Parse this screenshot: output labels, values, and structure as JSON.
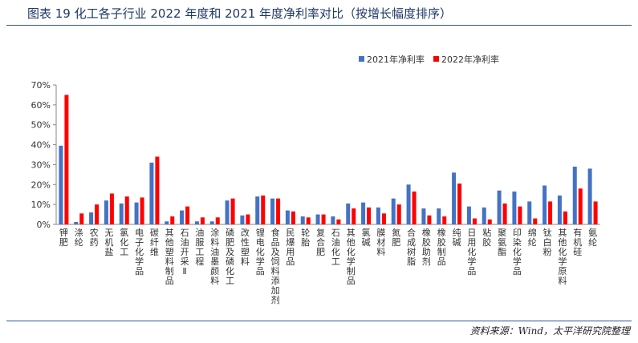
{
  "header": {
    "title": "图表 19 化工各子行业 2022 年度和 2021 年度净利率对比（按增长幅度排序）"
  },
  "footer": {
    "source": "资料来源：Wind，太平洋研究院整理"
  },
  "chart_data": {
    "type": "bar",
    "title": "",
    "xlabel": "",
    "ylabel": "",
    "ylim": [
      0,
      70
    ],
    "y_ticks": [
      "0%",
      "10%",
      "20%",
      "30%",
      "40%",
      "50%",
      "60%",
      "70%"
    ],
    "y_format": "percent",
    "grid": false,
    "legend_position": "top-right",
    "categories": [
      "钾肥",
      "涤纶",
      "农药",
      "无机盐",
      "氯化工",
      "电子化学品",
      "碳纤维",
      "其他塑料制品",
      "石油开采Ⅱ",
      "油服工程",
      "涂料油墨颜料",
      "磷肥及磷化工",
      "改性塑料",
      "锂电化学品",
      "食品及饲料添加剂",
      "民爆用品",
      "轮胎",
      "复合肥",
      "石油化工",
      "其他化学制品",
      "氯碱",
      "膜材料",
      "氮肥",
      "合成树脂",
      "橡胶助剂",
      "橡胶制品",
      "纯碱",
      "日用化学品",
      "粘胶",
      "聚氨酯",
      "印染化学品",
      "绵纶",
      "钛白粉",
      "其他化学原料",
      "有机硅",
      "氨纶"
    ],
    "series": [
      {
        "name": "2021年净利率",
        "color": "#4472c4",
        "values": [
          39.5,
          1.2,
          6,
          12,
          10.5,
          11,
          31,
          1.5,
          7,
          1.5,
          1.5,
          12,
          4.5,
          14,
          13,
          7,
          4,
          5,
          4,
          10.5,
          11,
          8.5,
          13,
          20,
          8,
          8,
          26,
          9,
          8.5,
          17,
          16.5,
          11.5,
          19.5,
          14.5,
          29,
          28
        ]
      },
      {
        "name": "2022年净利率",
        "color": "#ff0000",
        "values": [
          65,
          5.5,
          10,
          15.5,
          14,
          13.5,
          34,
          4,
          9,
          3.5,
          3.5,
          13,
          5,
          14.5,
          13,
          6.5,
          3.5,
          5,
          2.5,
          8,
          8.5,
          5.5,
          10,
          16.5,
          4.5,
          4,
          20.5,
          3,
          2.5,
          10.5,
          9,
          3,
          11.5,
          6.5,
          18,
          11.5
        ]
      }
    ]
  }
}
